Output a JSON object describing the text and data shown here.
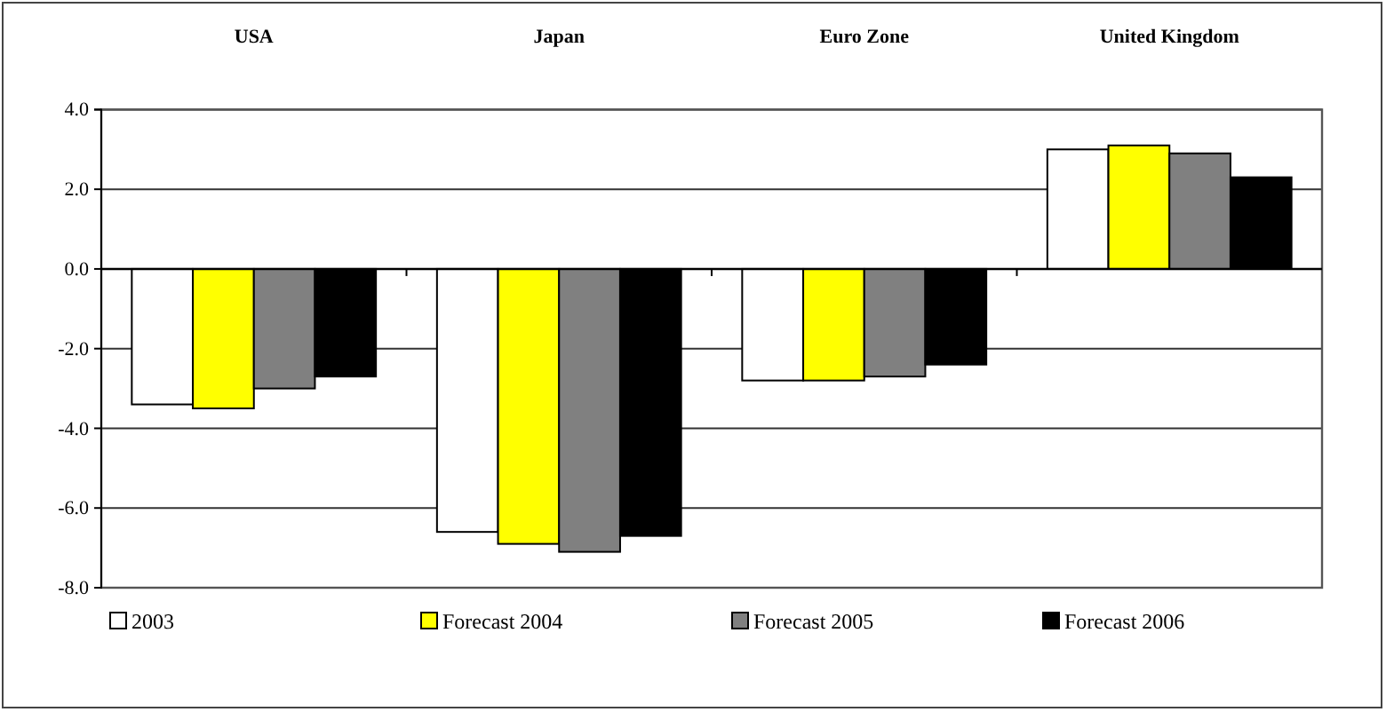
{
  "chart_data": {
    "type": "bar",
    "categories": [
      "USA",
      "Japan",
      "Euro Zone",
      "United Kingdom"
    ],
    "series": [
      {
        "name": "2003",
        "color": "#ffffff",
        "values": [
          -3.4,
          -6.6,
          -2.8,
          3.0
        ]
      },
      {
        "name": "Forecast 2004",
        "color": "#ffff00",
        "values": [
          -3.5,
          -6.9,
          -2.8,
          3.1
        ]
      },
      {
        "name": "Forecast 2005",
        "color": "#808080",
        "values": [
          -3.0,
          -7.1,
          -2.7,
          2.9
        ]
      },
      {
        "name": "Forecast 2006",
        "color": "#000000",
        "values": [
          -2.7,
          -6.7,
          -2.4,
          2.3
        ]
      }
    ],
    "ylim": [
      -8,
      4
    ],
    "yticks": [
      {
        "value": -8,
        "label": "-8.0"
      },
      {
        "value": -6,
        "label": "-6.0"
      },
      {
        "value": -4,
        "label": "-4.0"
      },
      {
        "value": -2,
        "label": "-2.0"
      },
      {
        "value": 0,
        "label": "0.0"
      },
      {
        "value": 2,
        "label": "2.0"
      },
      {
        "value": 4,
        "label": "4.0"
      }
    ],
    "grid": "y",
    "legend": "bottom"
  }
}
